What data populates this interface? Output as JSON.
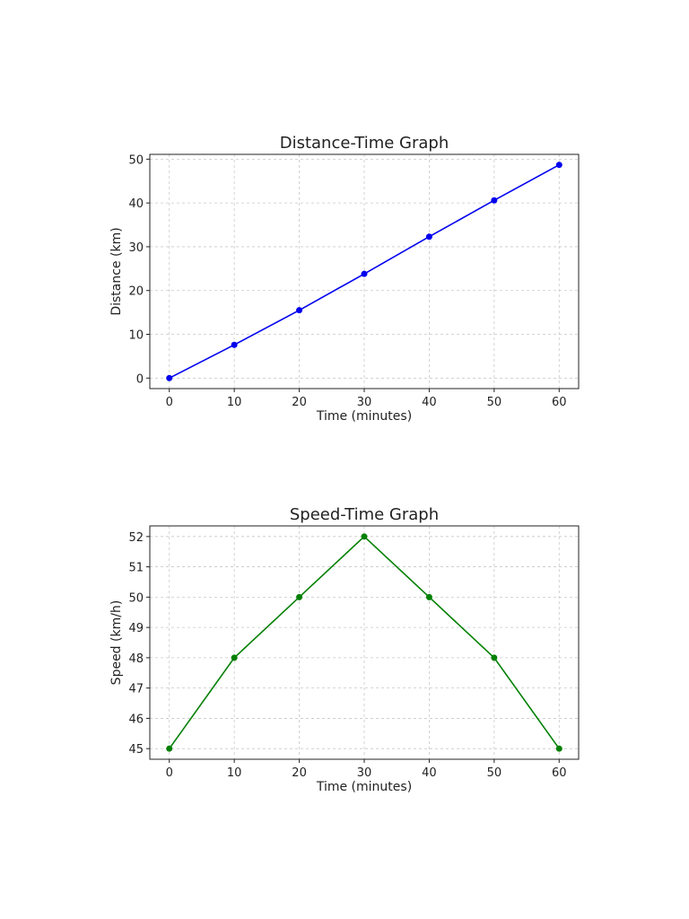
{
  "chart_data": [
    {
      "type": "line",
      "title": "Distance-Time Graph",
      "xlabel": "Time (minutes)",
      "ylabel": "Distance (km)",
      "x": [
        0,
        10,
        20,
        30,
        40,
        50,
        60
      ],
      "series": [
        {
          "values": [
            0,
            7.6,
            15.5,
            23.8,
            32.3,
            40.6,
            48.7
          ],
          "color": "#0000ee"
        }
      ],
      "xlim": [
        -3,
        63
      ],
      "ylim": [
        -2.4,
        51.1
      ],
      "xticks": [
        0,
        10,
        20,
        30,
        40,
        50,
        60
      ],
      "yticks": [
        0,
        10,
        20,
        30,
        40,
        50
      ],
      "grid": true,
      "legend": "none"
    },
    {
      "type": "line",
      "title": "Speed-Time Graph",
      "xlabel": "Time (minutes)",
      "ylabel": "Speed (km/h)",
      "x": [
        0,
        10,
        20,
        30,
        40,
        50,
        60
      ],
      "series": [
        {
          "values": [
            45,
            48,
            50,
            52,
            50,
            48,
            45
          ],
          "color": "#008000"
        }
      ],
      "xlim": [
        -3,
        63
      ],
      "ylim": [
        44.65,
        52.35
      ],
      "xticks": [
        0,
        10,
        20,
        30,
        40,
        50,
        60
      ],
      "yticks": [
        45,
        46,
        47,
        48,
        49,
        50,
        51,
        52
      ],
      "grid": true,
      "legend": "none"
    }
  ]
}
